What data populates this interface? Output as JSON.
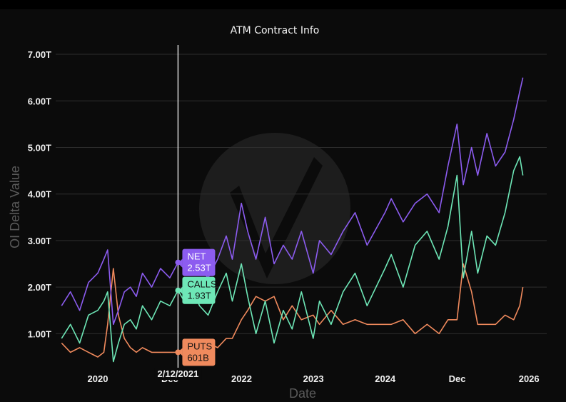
{
  "chart_data": {
    "type": "line",
    "title": "ATM Contract Info",
    "xlabel": "Date",
    "ylabel": "OI Delta Value",
    "x_range": [
      "2019-06-01",
      "2026-04-01"
    ],
    "x_ticks": [
      {
        "date": "2020-01-01",
        "label": "2020"
      },
      {
        "date": "2021-01-01",
        "label": "Dec"
      },
      {
        "date": "2022-01-01",
        "label": "2022"
      },
      {
        "date": "2023-01-01",
        "label": "2023"
      },
      {
        "date": "2024-01-01",
        "label": "2024"
      },
      {
        "date": "2025-01-01",
        "label": "Dec"
      },
      {
        "date": "2026-01-01",
        "label": "2026"
      }
    ],
    "y_range": [
      0.3,
      7.2
    ],
    "y_ticks": [
      {
        "value": 1,
        "label": "1.00T"
      },
      {
        "value": 2,
        "label": "2.00T"
      },
      {
        "value": 3,
        "label": "3.00T"
      },
      {
        "value": 4,
        "label": "4.00T"
      },
      {
        "value": 5,
        "label": "5.00T"
      },
      {
        "value": 6,
        "label": "6.00T"
      },
      {
        "value": 7,
        "label": "7.00T"
      }
    ],
    "grid": true,
    "legend": "none",
    "hover": {
      "date": "2021-02-12",
      "date_label": "2/12/2021",
      "labels": [
        {
          "series": "NET",
          "name": "NET",
          "value": 2.53,
          "value_label": "2.53T"
        },
        {
          "series": "CALLS",
          "name": "CALLS",
          "value": 1.93,
          "value_label": "1.93T"
        },
        {
          "series": "PUTS",
          "name": "PUTS",
          "value": 0.601,
          "value_label": "601B"
        }
      ]
    },
    "series": [
      {
        "name": "NET",
        "color": "#8c5cf0",
        "x": [
          "2019-07-01",
          "2019-08-15",
          "2019-10-01",
          "2019-11-15",
          "2020-01-01",
          "2020-02-01",
          "2020-02-20",
          "2020-03-20",
          "2020-04-15",
          "2020-05-15",
          "2020-06-15",
          "2020-07-15",
          "2020-08-15",
          "2020-10-01",
          "2020-11-15",
          "2021-01-01",
          "2021-02-12",
          "2021-03-15",
          "2021-04-15",
          "2021-06-01",
          "2021-07-15",
          "2021-09-01",
          "2021-10-15",
          "2021-11-15",
          "2021-12-31",
          "2022-02-01",
          "2022-03-15",
          "2022-05-01",
          "2022-06-15",
          "2022-08-01",
          "2022-09-15",
          "2022-11-01",
          "2022-12-31",
          "2023-02-01",
          "2023-04-01",
          "2023-06-01",
          "2023-08-01",
          "2023-10-01",
          "2023-12-31",
          "2024-02-01",
          "2024-04-01",
          "2024-06-01",
          "2024-08-01",
          "2024-10-01",
          "2024-11-15",
          "2024-12-31",
          "2025-02-01",
          "2025-03-15",
          "2025-04-15",
          "2025-06-01",
          "2025-07-15",
          "2025-09-01",
          "2025-10-15",
          "2025-11-15",
          "2025-12-01"
        ],
        "values": [
          1.6,
          1.9,
          1.5,
          2.1,
          2.3,
          2.6,
          2.8,
          1.2,
          1.5,
          1.9,
          2.0,
          1.8,
          2.3,
          2.0,
          2.4,
          2.2,
          2.53,
          2.4,
          2.8,
          2.4,
          2.2,
          2.6,
          3.1,
          2.6,
          3.8,
          3.2,
          2.6,
          3.5,
          2.5,
          2.9,
          2.6,
          3.2,
          2.3,
          3.0,
          2.7,
          3.2,
          3.6,
          2.9,
          3.6,
          3.9,
          3.4,
          3.8,
          4.0,
          3.6,
          4.6,
          5.5,
          4.2,
          5.0,
          4.4,
          5.3,
          4.6,
          4.9,
          5.6,
          6.2,
          6.5
        ]
      },
      {
        "name": "CALLS",
        "color": "#6ee7b7",
        "x": [
          "2019-07-01",
          "2019-08-15",
          "2019-10-01",
          "2019-11-15",
          "2020-01-01",
          "2020-02-01",
          "2020-02-20",
          "2020-03-20",
          "2020-04-15",
          "2020-05-15",
          "2020-06-15",
          "2020-07-15",
          "2020-08-15",
          "2020-10-01",
          "2020-11-15",
          "2021-01-01",
          "2021-02-12",
          "2021-03-15",
          "2021-04-15",
          "2021-06-01",
          "2021-07-15",
          "2021-09-01",
          "2021-10-15",
          "2021-11-15",
          "2021-12-31",
          "2022-02-01",
          "2022-03-15",
          "2022-05-01",
          "2022-06-15",
          "2022-08-01",
          "2022-09-15",
          "2022-11-01",
          "2022-12-31",
          "2023-02-01",
          "2023-04-01",
          "2023-06-01",
          "2023-08-01",
          "2023-10-01",
          "2023-12-31",
          "2024-02-01",
          "2024-04-01",
          "2024-06-01",
          "2024-08-01",
          "2024-10-01",
          "2024-11-15",
          "2024-12-31",
          "2025-02-01",
          "2025-03-15",
          "2025-04-15",
          "2025-06-01",
          "2025-07-15",
          "2025-09-01",
          "2025-10-15",
          "2025-11-15",
          "2025-12-01"
        ],
        "values": [
          0.9,
          1.2,
          0.8,
          1.4,
          1.5,
          1.7,
          1.9,
          0.4,
          0.8,
          1.2,
          1.3,
          1.1,
          1.6,
          1.3,
          1.7,
          1.6,
          1.93,
          1.7,
          2.1,
          1.6,
          1.4,
          1.9,
          2.3,
          1.7,
          2.5,
          1.8,
          1.0,
          1.7,
          0.8,
          1.5,
          1.1,
          1.9,
          0.9,
          1.7,
          1.2,
          1.9,
          2.3,
          1.6,
          2.4,
          2.7,
          2.0,
          2.9,
          3.2,
          2.6,
          3.3,
          4.4,
          2.2,
          3.2,
          2.3,
          3.1,
          2.9,
          3.6,
          4.5,
          4.8,
          4.4
        ]
      },
      {
        "name": "PUTS",
        "color": "#f08a5d",
        "x": [
          "2019-07-01",
          "2019-08-15",
          "2019-10-01",
          "2019-11-15",
          "2020-01-01",
          "2020-02-01",
          "2020-02-20",
          "2020-03-20",
          "2020-04-15",
          "2020-05-15",
          "2020-06-15",
          "2020-07-15",
          "2020-08-15",
          "2020-10-01",
          "2020-11-15",
          "2021-01-01",
          "2021-02-12",
          "2021-03-15",
          "2021-04-15",
          "2021-06-01",
          "2021-07-15",
          "2021-09-01",
          "2021-10-15",
          "2021-11-15",
          "2021-12-31",
          "2022-02-01",
          "2022-03-15",
          "2022-05-01",
          "2022-06-15",
          "2022-08-01",
          "2022-09-15",
          "2022-11-01",
          "2022-12-31",
          "2023-02-01",
          "2023-04-01",
          "2023-06-01",
          "2023-08-01",
          "2023-10-01",
          "2023-12-31",
          "2024-02-01",
          "2024-04-01",
          "2024-06-01",
          "2024-08-01",
          "2024-10-01",
          "2024-11-15",
          "2024-12-31",
          "2025-02-01",
          "2025-03-15",
          "2025-04-15",
          "2025-06-01",
          "2025-07-15",
          "2025-09-01",
          "2025-10-15",
          "2025-11-15",
          "2025-12-01"
        ],
        "values": [
          0.8,
          0.6,
          0.7,
          0.6,
          0.5,
          0.6,
          1.2,
          2.4,
          1.4,
          0.9,
          0.7,
          0.6,
          0.7,
          0.6,
          0.6,
          0.6,
          0.601,
          0.7,
          0.8,
          0.7,
          0.8,
          0.7,
          0.9,
          0.9,
          1.3,
          1.5,
          1.8,
          1.7,
          1.8,
          1.3,
          1.6,
          1.3,
          1.4,
          1.2,
          1.5,
          1.2,
          1.3,
          1.2,
          1.2,
          1.2,
          1.3,
          1.0,
          1.2,
          1.0,
          1.3,
          1.3,
          2.5,
          1.9,
          1.2,
          1.2,
          1.2,
          1.4,
          1.3,
          1.6,
          2.0
        ]
      }
    ]
  }
}
